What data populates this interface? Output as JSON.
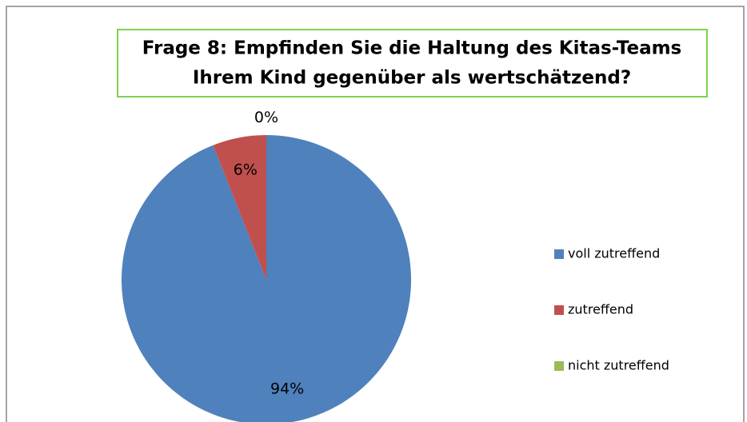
{
  "chart_data": {
    "type": "pie",
    "title": [
      "Frage 8: Empfinden Sie die Haltung des Kitas-Teams",
      "Ihrem Kind gegenüber als wertschätzend?"
    ],
    "categories": [
      "voll zutreffend",
      "zutreffend",
      "nicht zutreffend"
    ],
    "values": [
      94,
      6,
      0
    ],
    "value_labels": [
      "94%",
      "6%",
      "0%"
    ],
    "colors": [
      "#4f81bd",
      "#c0504d",
      "#9bbb59"
    ],
    "legend": "right"
  }
}
